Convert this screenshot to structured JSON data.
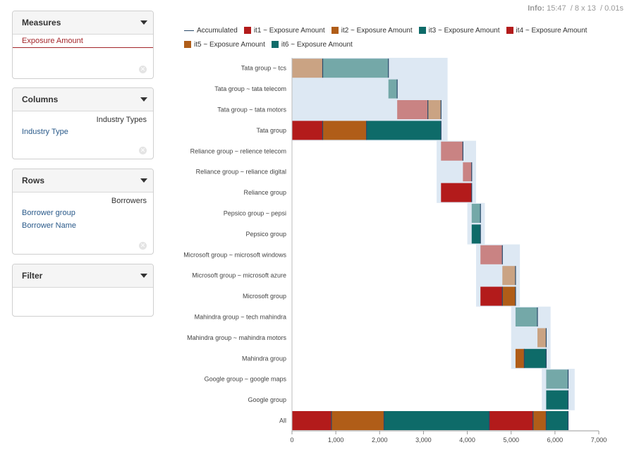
{
  "info": {
    "label": "Info:",
    "time": "15:47",
    "size": "/ 8 x 13",
    "duration": "/ 0.01s"
  },
  "panels": {
    "measures": {
      "title": "Measures",
      "items": [
        "Exposure Amount"
      ]
    },
    "columns": {
      "title": "Columns",
      "group_label": "Industry Types",
      "items": [
        "Industry Type"
      ]
    },
    "rows": {
      "title": "Rows",
      "group_label": "Borrowers",
      "items": [
        "Borrower group",
        "Borrower Name"
      ]
    },
    "filter": {
      "title": "Filter"
    }
  },
  "colors": {
    "accumulated": "#2a4a6a",
    "it1": "#b31b1b",
    "it2": "#b05d18",
    "it3": "#0e6b69",
    "it4": "#b31b1b",
    "it5": "#b05d18",
    "it6": "#0e6b69",
    "highlight": "#dde8f3"
  },
  "chart_data": {
    "type": "bar",
    "orientation": "horizontal",
    "subtype": "waterfall",
    "legend": [
      "Accumulated",
      "it1 ~ Exposure Amount",
      "it2 ~ Exposure Amount",
      "it3 ~ Exposure Amount",
      "it4 ~ Exposure Amount",
      "it5 ~ Exposure Amount",
      "it6 ~ Exposure Amount"
    ],
    "legend_position": "top",
    "xlim": [
      0,
      7000
    ],
    "xticks": [
      "0",
      "1,000",
      "2,000",
      "3,000",
      "4,000",
      "5,000",
      "6,000",
      "7,000"
    ],
    "categories": [
      "Tata group ~ tcs",
      "Tata group ~ tata telecom",
      "Tata group ~ tata motors",
      "Tata group",
      "Reliance group ~ relience telecom",
      "Reliance group ~ reliance digital",
      "Reliance group",
      "Pepsico group ~ pepsi",
      "Pepsico group",
      "Microsoft group ~ microsoft windows",
      "Microsoft group ~ microsoft azure",
      "Microsoft group",
      "Mahindra group ~ tech mahindra",
      "Mahindra group ~ mahindra motors",
      "Mahindra group",
      "Google group ~ google maps",
      "Google group",
      "All"
    ],
    "row_type": [
      "leaf",
      "leaf",
      "leaf",
      "total",
      "leaf",
      "leaf",
      "total",
      "leaf",
      "total",
      "leaf",
      "leaf",
      "total",
      "leaf",
      "leaf",
      "total",
      "leaf",
      "total",
      "total"
    ],
    "segments": [
      [
        {
          "s": "it2",
          "start": 0,
          "end": 700
        },
        {
          "s": "it3",
          "start": 700,
          "end": 2200
        }
      ],
      [
        {
          "s": "it3",
          "start": 2200,
          "end": 2400
        }
      ],
      [
        {
          "s": "it1",
          "start": 2400,
          "end": 3100
        },
        {
          "s": "it2",
          "start": 3100,
          "end": 3400
        }
      ],
      [
        {
          "s": "it1",
          "start": 0,
          "end": 700
        },
        {
          "s": "it2",
          "start": 700,
          "end": 1700
        },
        {
          "s": "it3",
          "start": 1700,
          "end": 3400
        }
      ],
      [
        {
          "s": "it1",
          "start": 3400,
          "end": 3900
        }
      ],
      [
        {
          "s": "it1",
          "start": 3900,
          "end": 4100
        }
      ],
      [
        {
          "s": "it1",
          "start": 3400,
          "end": 4100
        }
      ],
      [
        {
          "s": "it3",
          "start": 4100,
          "end": 4300
        }
      ],
      [
        {
          "s": "it3",
          "start": 4100,
          "end": 4300
        }
      ],
      [
        {
          "s": "it4",
          "start": 4300,
          "end": 4800
        }
      ],
      [
        {
          "s": "it5",
          "start": 4800,
          "end": 5100
        }
      ],
      [
        {
          "s": "it4",
          "start": 4300,
          "end": 4800
        },
        {
          "s": "it5",
          "start": 4800,
          "end": 5100
        }
      ],
      [
        {
          "s": "it6",
          "start": 5100,
          "end": 5600
        }
      ],
      [
        {
          "s": "it5",
          "start": 5600,
          "end": 5800
        }
      ],
      [
        {
          "s": "it5",
          "start": 5100,
          "end": 5300
        },
        {
          "s": "it6",
          "start": 5300,
          "end": 5800
        }
      ],
      [
        {
          "s": "it6",
          "start": 5800,
          "end": 6300
        }
      ],
      [
        {
          "s": "it6",
          "start": 5800,
          "end": 6300
        }
      ],
      [
        {
          "s": "it1",
          "start": 0,
          "end": 900
        },
        {
          "s": "it2",
          "start": 900,
          "end": 2100
        },
        {
          "s": "it3",
          "start": 2100,
          "end": 4500
        },
        {
          "s": "it4",
          "start": 4500,
          "end": 5500
        },
        {
          "s": "it5",
          "start": 5500,
          "end": 5800
        },
        {
          "s": "it6",
          "start": 5800,
          "end": 6300
        }
      ]
    ],
    "groups": [
      {
        "rows": [
          0,
          3
        ],
        "start": 0,
        "end": 3550
      },
      {
        "rows": [
          4,
          6
        ],
        "start": 3300,
        "end": 4200
      },
      {
        "rows": [
          7,
          8
        ],
        "start": 4000,
        "end": 4400
      },
      {
        "rows": [
          9,
          11
        ],
        "start": 4200,
        "end": 5200
      },
      {
        "rows": [
          12,
          14
        ],
        "start": 5000,
        "end": 5900
      },
      {
        "rows": [
          15,
          16
        ],
        "start": 5700,
        "end": 6450
      }
    ]
  }
}
